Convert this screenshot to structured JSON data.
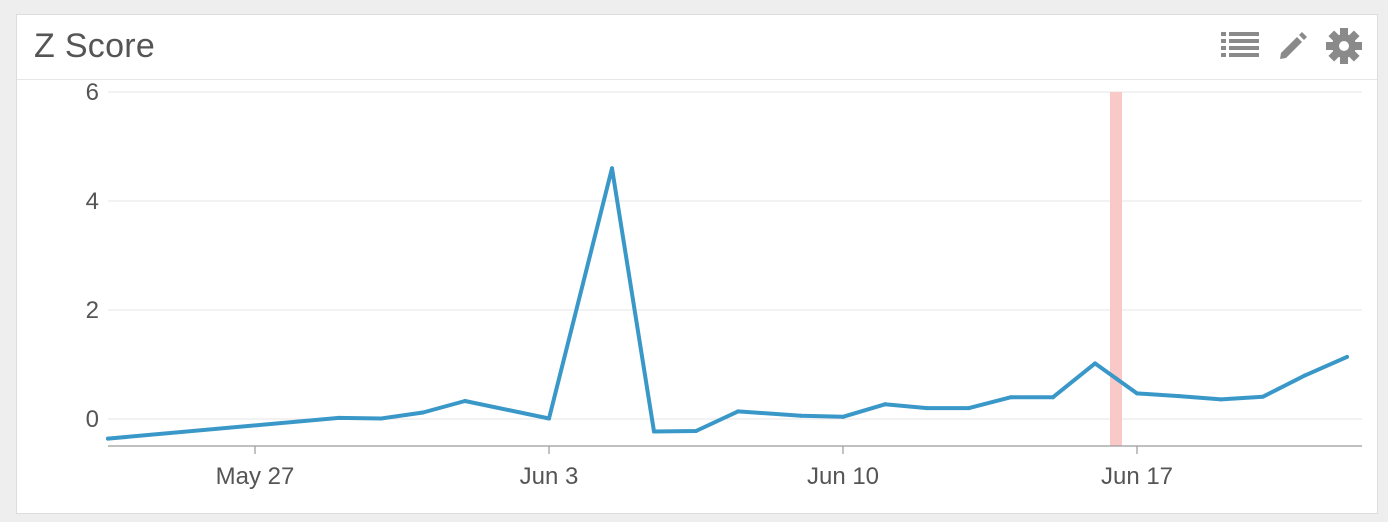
{
  "widget": {
    "title": "Z Score",
    "tools": [
      {
        "name": "legend-list-icon"
      },
      {
        "name": "edit-pencil-icon"
      },
      {
        "name": "settings-gear-icon"
      }
    ]
  },
  "colors": {
    "line": "#3a98c9",
    "grid": "#e4e4e4",
    "axis": "#9a9a9a",
    "highlight": "#f8c9c6",
    "icon": "#8a8a8a"
  },
  "chart_data": {
    "type": "line",
    "title": "Z Score",
    "xlabel": "",
    "ylabel": "",
    "x_tick_labels": [
      "May 27",
      "Jun 3",
      "Jun 10",
      "Jun 17"
    ],
    "y_tick_labels": [
      "0",
      "2",
      "4",
      "6"
    ],
    "y_ticks": [
      0,
      2,
      4,
      6
    ],
    "ylim": [
      -0.5,
      6
    ],
    "xlim": [
      "2018-05-23T12:00",
      "2018-06-22T12:00"
    ],
    "grid": true,
    "legend": "none",
    "series": [
      {
        "x": [
          "2018-05-23T12:00",
          "2018-05-29T00:00",
          "2018-05-30T00:00",
          "2018-05-31T00:00",
          "2018-06-01T00:00",
          "2018-06-03T00:00",
          "2018-06-04T12:00",
          "2018-06-05T12:00",
          "2018-06-06T12:00",
          "2018-06-07T12:00",
          "2018-06-09T00:00",
          "2018-06-10T00:00",
          "2018-06-11T00:00",
          "2018-06-12T00:00",
          "2018-06-13T00:00",
          "2018-06-14T00:00",
          "2018-06-15T00:00",
          "2018-06-16T00:00",
          "2018-06-17T00:00",
          "2018-06-18T00:00",
          "2018-06-19T00:00",
          "2018-06-20T00:00",
          "2018-06-21T00:00",
          "2018-06-22T00:00"
        ],
        "values": [
          -0.36,
          0.02,
          0.01,
          0.12,
          0.33,
          0.01,
          4.6,
          -0.23,
          -0.22,
          0.14,
          0.06,
          0.04,
          0.27,
          0.2,
          0.2,
          0.4,
          0.4,
          1.02,
          0.47,
          0.42,
          0.36,
          0.41,
          0.8,
          1.14
        ]
      }
    ],
    "highlight_band": {
      "x": "2018-06-16T12:00"
    }
  }
}
